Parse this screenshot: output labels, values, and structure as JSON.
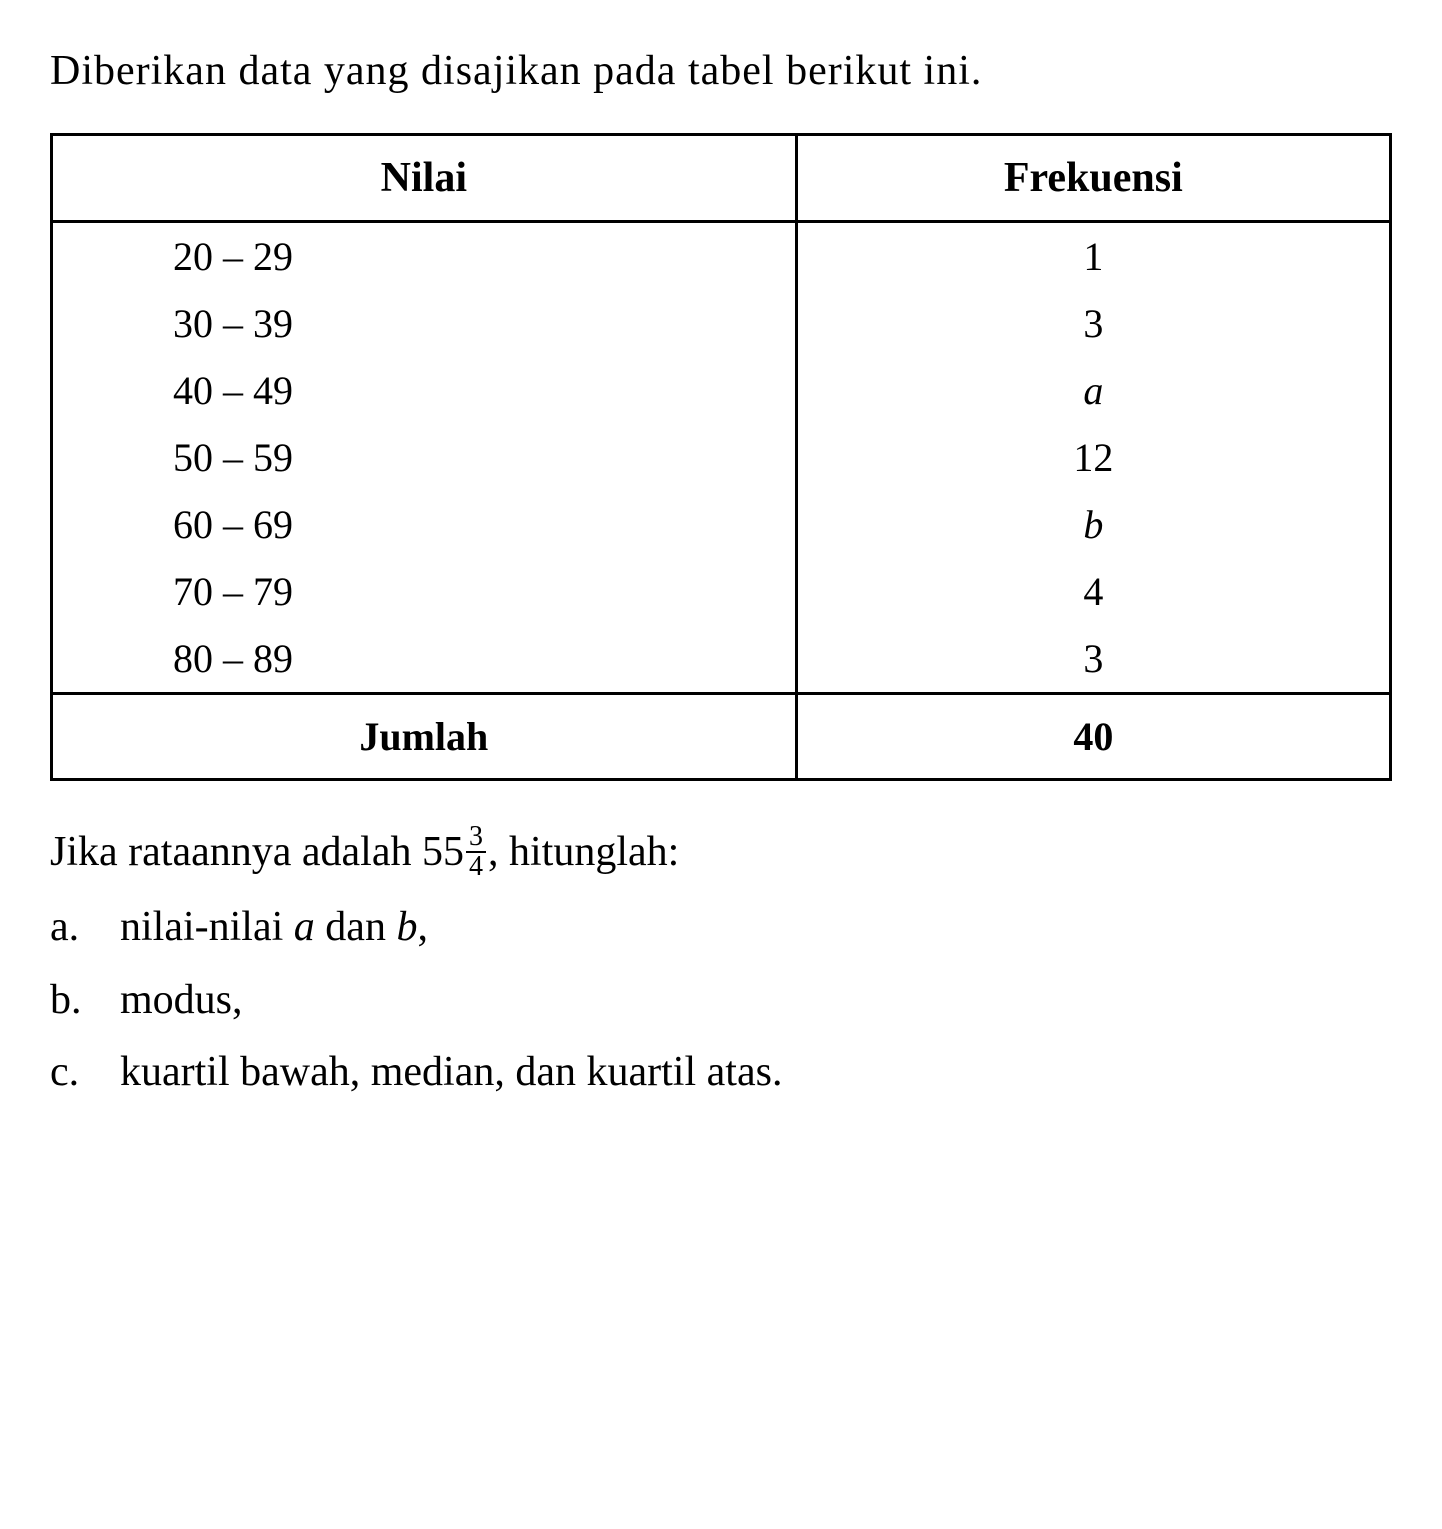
{
  "intro": "Diberikan data yang disajikan pada tabel berikut ini.",
  "table": {
    "headers": {
      "col1": "Nilai",
      "col2": "Frekuensi"
    },
    "rows": [
      {
        "nilai": "20 – 29",
        "frekuensi": "1",
        "italic": false
      },
      {
        "nilai": "30 – 39",
        "frekuensi": "3",
        "italic": false
      },
      {
        "nilai": "40 – 49",
        "frekuensi": "a",
        "italic": true
      },
      {
        "nilai": "50 – 59",
        "frekuensi": "12",
        "italic": false
      },
      {
        "nilai": "60 – 69",
        "frekuensi": "b",
        "italic": true
      },
      {
        "nilai": "70 – 79",
        "frekuensi": "4",
        "italic": false
      },
      {
        "nilai": "80 – 89",
        "frekuensi": "3",
        "italic": false
      }
    ],
    "total": {
      "label": "Jumlah",
      "value": "40"
    }
  },
  "question": {
    "prefix": "Jika rataannya adalah 55",
    "fraction_num": "3",
    "fraction_den": "4",
    "suffix": ", hitunglah:"
  },
  "subquestions": [
    {
      "label": "a.",
      "text_pre": "nilai-nilai ",
      "a": "a",
      "mid": " dan ",
      "b": "b",
      "text_post": ","
    },
    {
      "label": "b.",
      "text": "modus,"
    },
    {
      "label": "c.",
      "text": "kuartil bawah, median, dan kuartil atas."
    }
  ],
  "colors": {
    "text": "#000000",
    "background": "#ffffff",
    "border": "#000000"
  },
  "typography": {
    "body_fontsize": 42,
    "table_fontsize": 40,
    "fraction_fontsize": 28,
    "font_family": "Times New Roman"
  }
}
